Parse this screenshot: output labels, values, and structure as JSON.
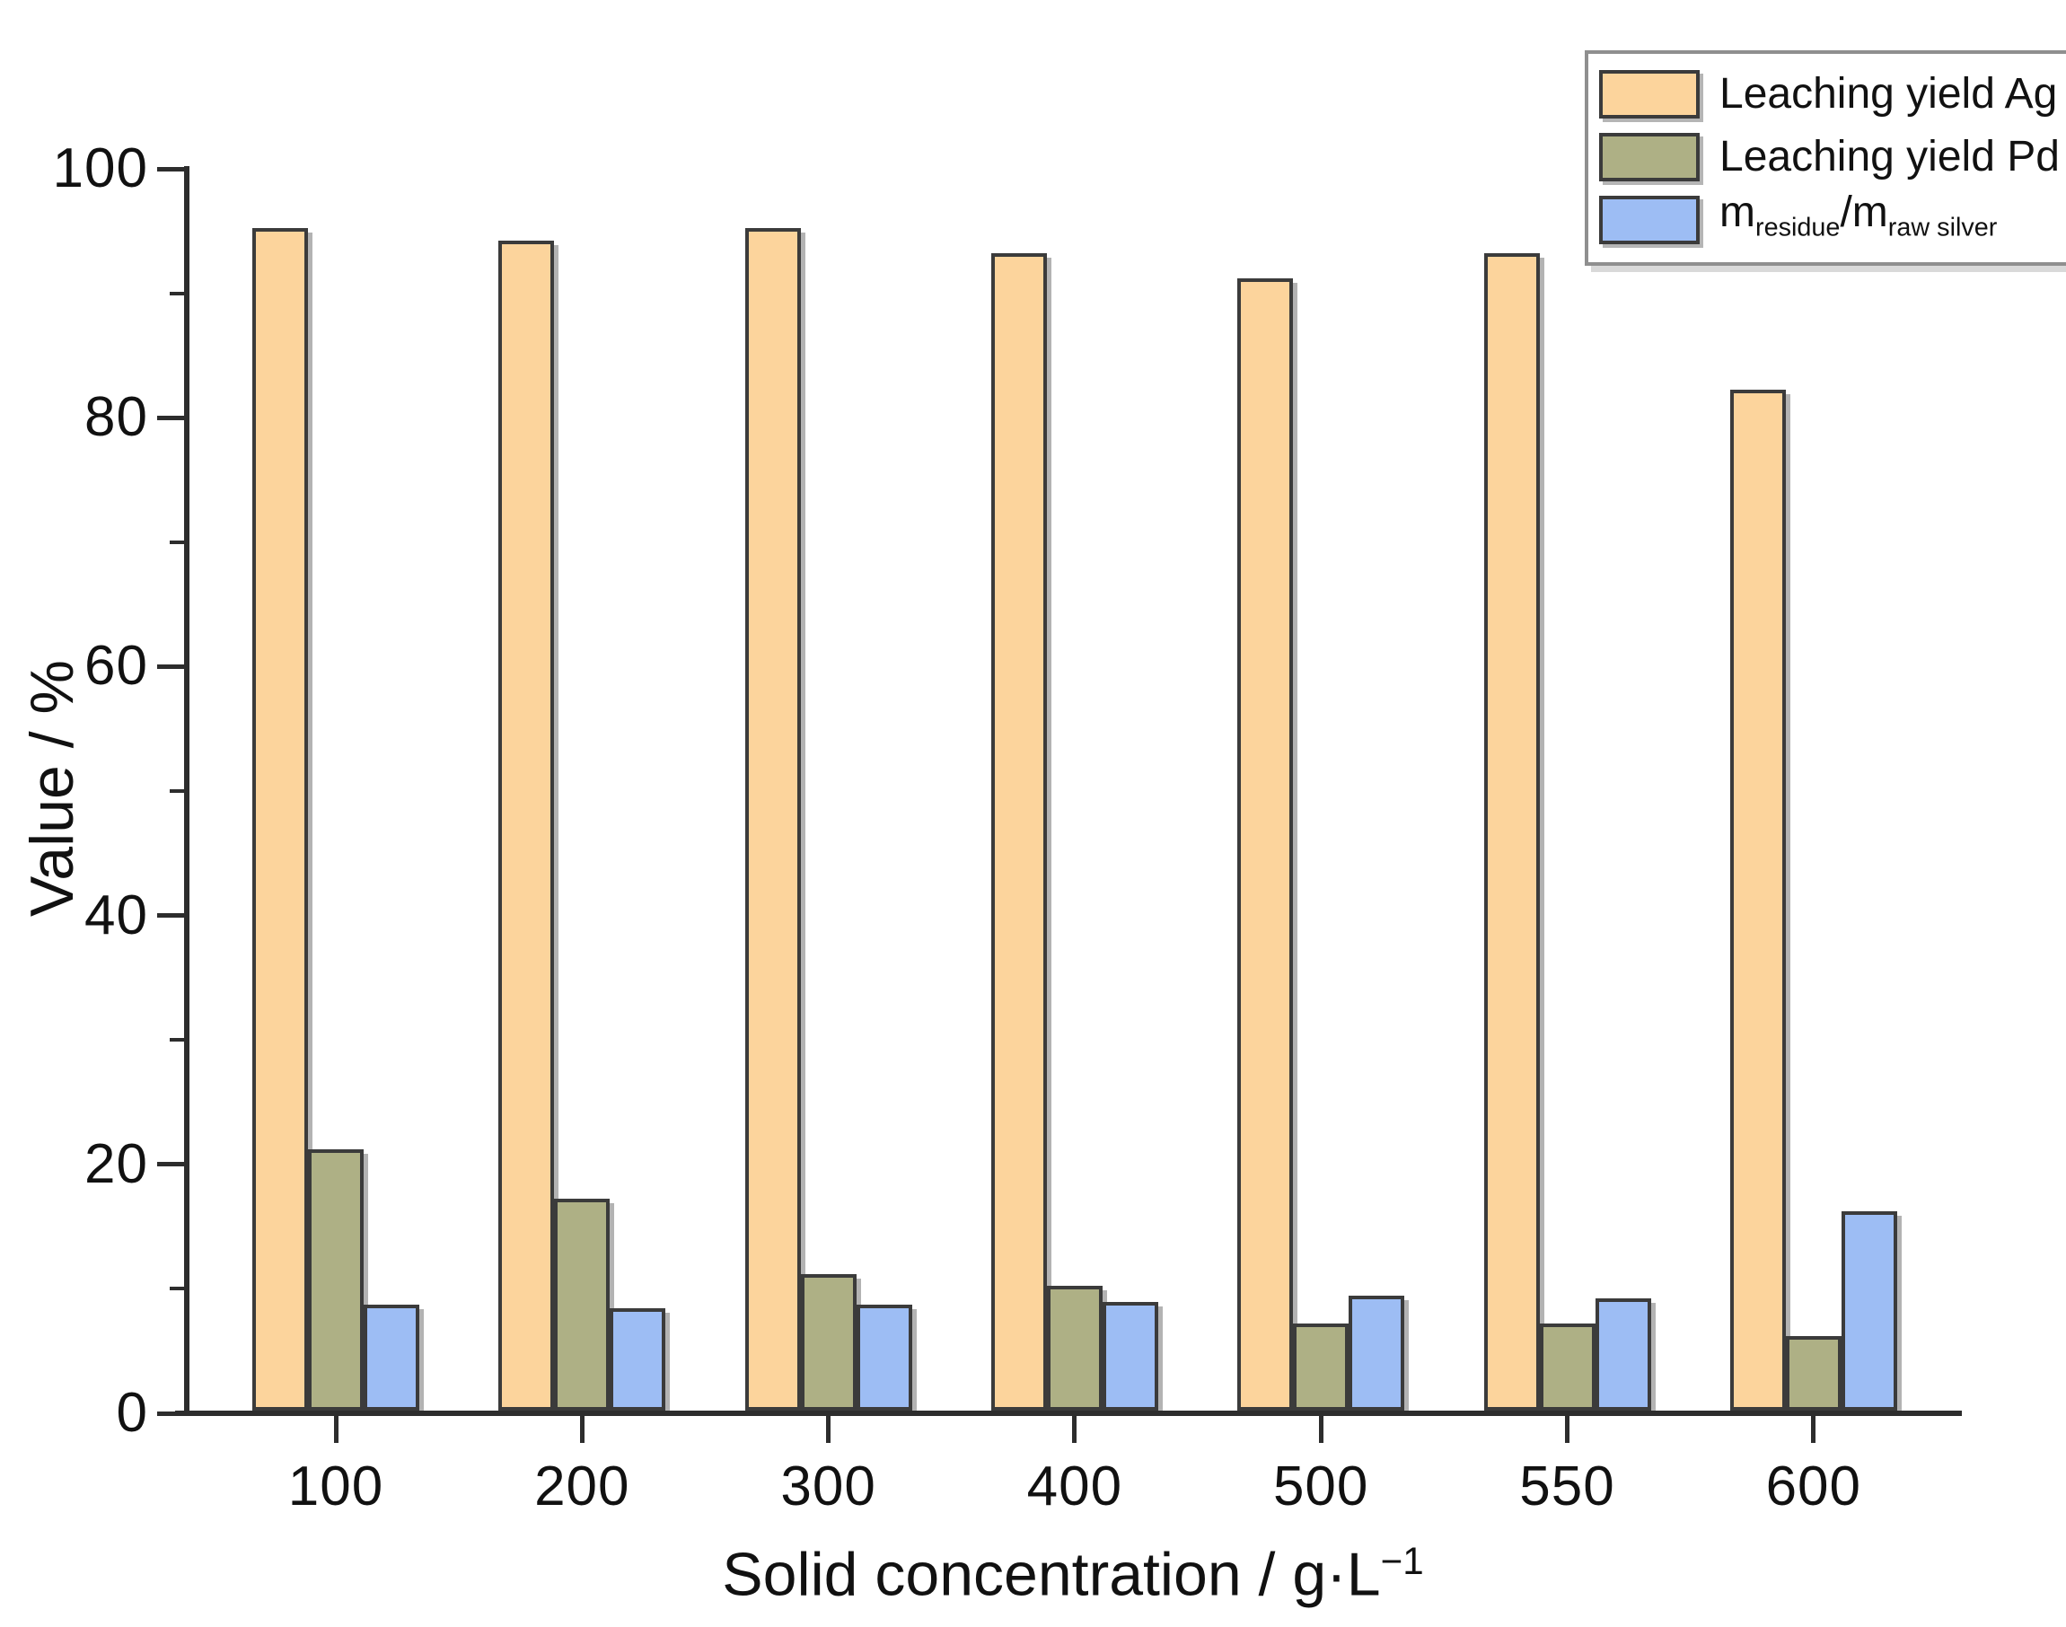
{
  "figure": {
    "background": "#ffffff",
    "y_axis": {
      "title": "Value / %",
      "ticks": [
        0,
        20,
        40,
        60,
        80,
        100
      ],
      "minor_ticks": [
        10,
        30,
        50,
        70,
        90
      ],
      "range": [
        0,
        100
      ]
    },
    "x_axis": {
      "title_main": "Solid concentration / g·L",
      "title_sup": "−1",
      "tick_labels": [
        "100",
        "200",
        "300",
        "400",
        "500",
        "550",
        "600"
      ]
    },
    "colors": {
      "axis": "#2d2d2d",
      "text": "#111111",
      "bar_border": "#3b3b3b",
      "bar_shadow": "#b3b3b3",
      "legend_border": "#8f8f8f"
    }
  },
  "chart_data": {
    "type": "bar",
    "title": "",
    "categories": [
      100,
      200,
      300,
      400,
      500,
      550,
      600
    ],
    "series": [
      {
        "key": "leaching-yield-ag",
        "name": "Leaching yield Ag",
        "color": "#fcd49c",
        "values": [
          95,
          94,
          95,
          93,
          91,
          93,
          82
        ]
      },
      {
        "key": "leaching-yield-pd",
        "name": "Leaching yield Pd",
        "color": "#aeb085",
        "values": [
          21,
          17,
          11,
          10,
          7,
          7,
          6
        ]
      },
      {
        "key": "residue-ratio",
        "name": "m_residue/m_raw silver",
        "color": "#9dbdf4",
        "values": [
          8.5,
          8.2,
          8.5,
          8.7,
          9.2,
          9.0,
          16
        ]
      }
    ],
    "xlabel": "Solid concentration / g·L⁻¹",
    "ylabel": "Value / %",
    "ylim": [
      0,
      100
    ],
    "grid": false,
    "legend_position": "top-right"
  },
  "legend": {
    "items": [
      {
        "label": "Leaching yield Ag",
        "swatch": "#fcd49c"
      },
      {
        "label": "Leaching yield Pd",
        "swatch": "#aeb085"
      },
      {
        "label_parts": {
          "m1": "m",
          "sub1": "residue",
          "slash": "/",
          "m2": "m",
          "sub2": "raw silver"
        },
        "swatch": "#9dbdf4"
      }
    ]
  }
}
